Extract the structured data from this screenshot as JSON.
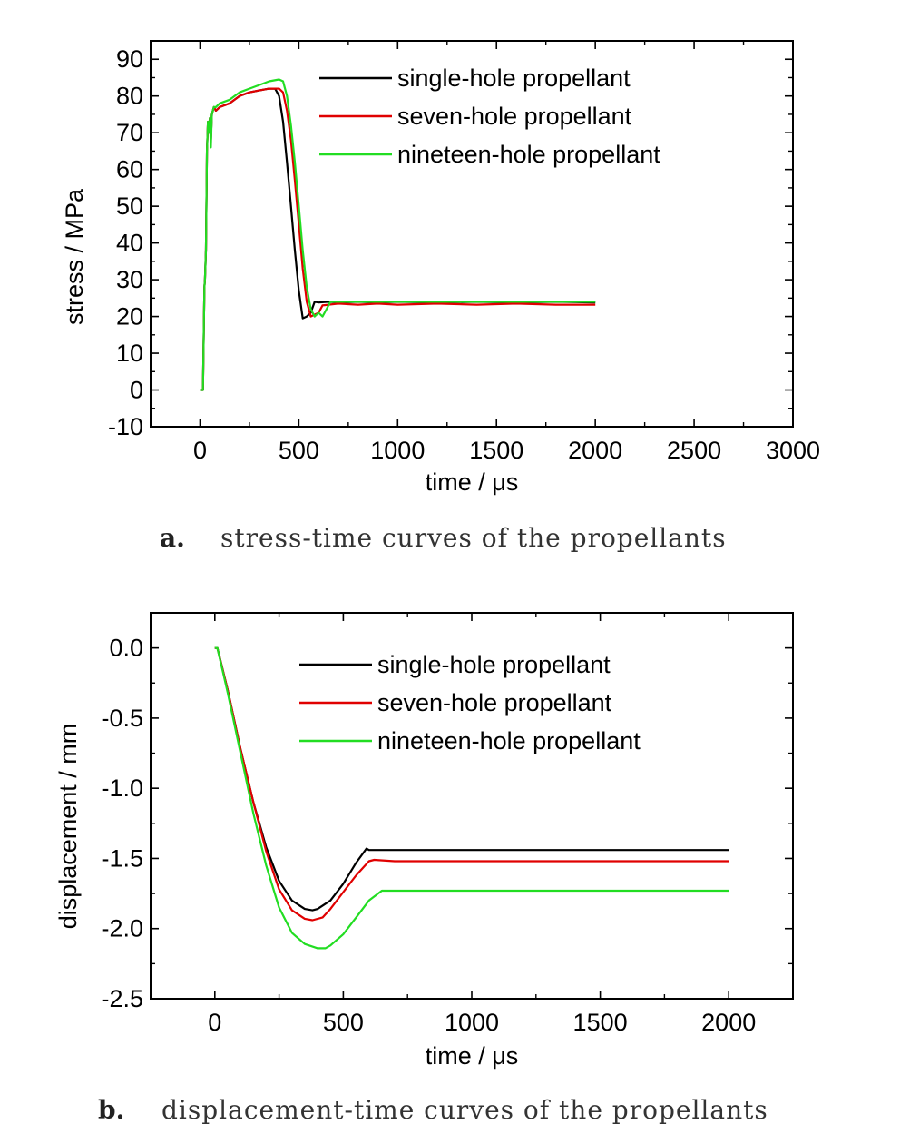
{
  "figure": {
    "panels": [
      {
        "caption_prefix": "a.",
        "caption_text": "stress-time curves of the propellants"
      },
      {
        "caption_prefix": "b.",
        "caption_text": "displacement-time curves of the propellants"
      }
    ]
  },
  "chart_data": [
    {
      "type": "line",
      "title": "",
      "xlabel": "time / μs",
      "ylabel": "stress / MPa",
      "xlim": [
        -250,
        3000
      ],
      "ylim": [
        -10,
        95
      ],
      "xticks": [
        0,
        500,
        1000,
        1500,
        2000,
        2500,
        3000
      ],
      "yticks": [
        -10,
        0,
        10,
        20,
        30,
        40,
        50,
        60,
        70,
        80,
        90
      ],
      "legend_position": "top-right",
      "series": [
        {
          "name": "single-hole propellant",
          "color": "#000000",
          "x": [
            0,
            15,
            22,
            25,
            30,
            35,
            40,
            45,
            50,
            55,
            60,
            70,
            80,
            100,
            150,
            200,
            250,
            300,
            350,
            380,
            400,
            420,
            440,
            460,
            480,
            500,
            520,
            540,
            560,
            580,
            600,
            650,
            700,
            800,
            900,
            1000,
            1200,
            1400,
            1600,
            1800,
            2000
          ],
          "y": [
            0,
            0,
            28,
            30,
            38,
            65,
            73,
            70,
            74,
            68,
            75,
            77,
            76,
            77,
            78,
            80,
            81,
            81.5,
            82,
            82,
            80,
            73,
            62,
            50,
            38,
            27,
            19.5,
            20,
            21,
            24,
            23.8,
            24,
            23.8,
            24,
            23.8,
            24,
            23.8,
            24,
            23.8,
            24,
            23.8
          ]
        },
        {
          "name": "seven-hole propellant",
          "color": "#e00000",
          "x": [
            0,
            15,
            22,
            25,
            30,
            35,
            40,
            45,
            50,
            55,
            60,
            70,
            80,
            100,
            150,
            200,
            250,
            300,
            350,
            400,
            420,
            440,
            460,
            480,
            500,
            520,
            540,
            560,
            580,
            600,
            620,
            650,
            700,
            800,
            900,
            1000,
            1200,
            1400,
            1600,
            1800,
            2000
          ],
          "y": [
            0,
            0,
            28,
            30,
            38,
            65,
            73,
            70,
            74,
            68,
            75,
            77,
            76,
            77,
            78,
            80,
            81,
            81.5,
            82,
            82,
            81,
            76,
            68,
            57,
            45,
            33,
            24,
            20,
            20.5,
            21,
            23,
            23.2,
            23.5,
            23.2,
            23.5,
            23.2,
            23.5,
            23.2,
            23.5,
            23.2,
            23.2
          ]
        },
        {
          "name": "nineteen-hole propellant",
          "color": "#22dd22",
          "x": [
            0,
            15,
            22,
            25,
            30,
            35,
            40,
            45,
            50,
            55,
            60,
            70,
            80,
            100,
            150,
            200,
            250,
            300,
            350,
            400,
            420,
            440,
            460,
            480,
            500,
            520,
            540,
            560,
            580,
            600,
            620,
            640,
            660,
            700,
            800,
            900,
            1000,
            1200,
            1400,
            1600,
            1800,
            2000
          ],
          "y": [
            0,
            0,
            28,
            30,
            38,
            65,
            73,
            70,
            74,
            66,
            75,
            77,
            77,
            78,
            79,
            81,
            82,
            83,
            84,
            84.5,
            84,
            80,
            72,
            62,
            50,
            38,
            28,
            22,
            20,
            21,
            20,
            22,
            24,
            24,
            24,
            24,
            24,
            24,
            24,
            24,
            24,
            24
          ]
        }
      ]
    },
    {
      "type": "line",
      "title": "",
      "xlabel": "time / μs",
      "ylabel": "displacement / mm",
      "xlim": [
        -250,
        2250
      ],
      "ylim": [
        -2.5,
        0.25
      ],
      "xticks": [
        0,
        500,
        1000,
        1500,
        2000
      ],
      "yticks": [
        0.0,
        -0.5,
        -1.0,
        -1.5,
        -2.0,
        -2.5
      ],
      "ytick_labels": [
        "0.0",
        "-0.5",
        "-1.0",
        "-1.5",
        "-2.0",
        "-2.5"
      ],
      "legend_position": "top-right",
      "series": [
        {
          "name": "single-hole propellant",
          "color": "#000000",
          "x": [
            0,
            10,
            50,
            100,
            150,
            200,
            250,
            300,
            350,
            380,
            400,
            450,
            500,
            550,
            590,
            600,
            700,
            800,
            900,
            1000,
            1200,
            1400,
            1600,
            1800,
            2000
          ],
          "y": [
            0,
            0,
            -0.3,
            -0.72,
            -1.1,
            -1.42,
            -1.66,
            -1.8,
            -1.86,
            -1.87,
            -1.86,
            -1.8,
            -1.68,
            -1.53,
            -1.43,
            -1.44,
            -1.44,
            -1.44,
            -1.44,
            -1.44,
            -1.44,
            -1.44,
            -1.44,
            -1.44,
            -1.44
          ]
        },
        {
          "name": "seven-hole propellant",
          "color": "#e00000",
          "x": [
            0,
            10,
            50,
            100,
            150,
            200,
            250,
            300,
            350,
            380,
            420,
            450,
            500,
            550,
            600,
            620,
            700,
            800,
            900,
            1000,
            1200,
            1400,
            1600,
            1800,
            2000
          ],
          "y": [
            0,
            0,
            -0.3,
            -0.72,
            -1.1,
            -1.45,
            -1.72,
            -1.87,
            -1.93,
            -1.94,
            -1.92,
            -1.86,
            -1.74,
            -1.62,
            -1.52,
            -1.51,
            -1.52,
            -1.52,
            -1.52,
            -1.52,
            -1.52,
            -1.52,
            -1.52,
            -1.52,
            -1.52
          ]
        },
        {
          "name": "nineteen-hole propellant",
          "color": "#22dd22",
          "x": [
            0,
            10,
            50,
            100,
            150,
            200,
            250,
            300,
            350,
            400,
            430,
            450,
            500,
            550,
            600,
            650,
            700,
            800,
            900,
            1000,
            1200,
            1400,
            1600,
            1800,
            2000
          ],
          "y": [
            0,
            0,
            -0.32,
            -0.75,
            -1.18,
            -1.55,
            -1.85,
            -2.03,
            -2.11,
            -2.14,
            -2.14,
            -2.12,
            -2.04,
            -1.92,
            -1.8,
            -1.73,
            -1.73,
            -1.73,
            -1.73,
            -1.73,
            -1.73,
            -1.73,
            -1.73,
            -1.73,
            -1.73
          ]
        }
      ]
    }
  ]
}
